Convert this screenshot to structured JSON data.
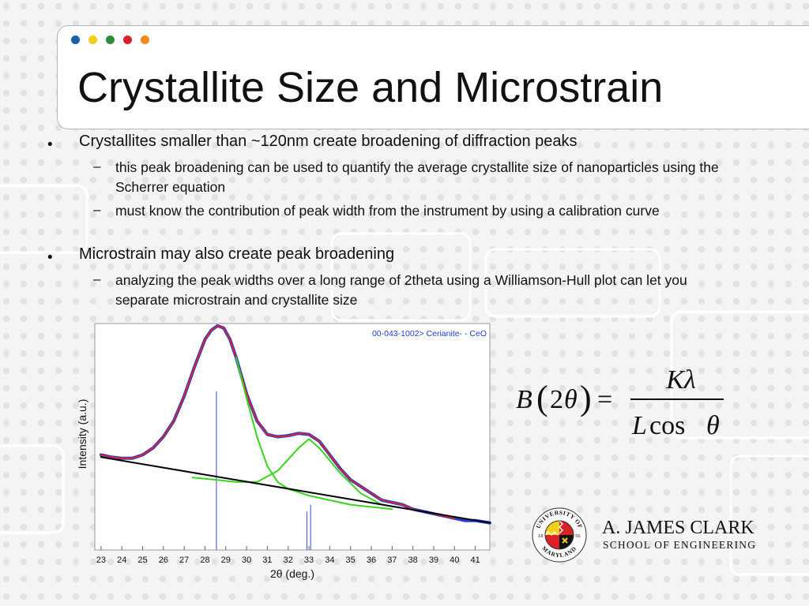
{
  "title": "Crystallite Size and Microstrain",
  "accent_dots": [
    "#1d5fa8",
    "#f3cf1a",
    "#2e8b3a",
    "#d92128",
    "#f28a1d"
  ],
  "bullets": [
    {
      "text": "Crystallites smaller than ~120nm create broadening of diffraction peaks",
      "sub": [
        "this peak broadening can be used to quantify the average crystallite size of nanoparticles using the Scherrer equation",
        "must know the contribution of peak width from the instrument by using a calibration curve"
      ]
    },
    {
      "text": "Microstrain may also create peak broadening",
      "sub": [
        "analyzing the peak widths over a long range of 2theta using a Williamson-Hull plot can let you separate microstrain and crystallite size"
      ]
    }
  ],
  "bullet_symbol": "•",
  "sub_bullet_symbol": "–",
  "chart_data": {
    "type": "line",
    "ylabel": "Intensity (a.u.)",
    "xlabel": "2θ (deg.)",
    "legend": "00-043-1002> Cerianite- - CeO",
    "legend_position": "top-right",
    "xlim": [
      22.7,
      41.7
    ],
    "ylim": [
      0,
      100
    ],
    "x_ticks": [
      23,
      24,
      25,
      26,
      27,
      28,
      29,
      30,
      31,
      32,
      33,
      34,
      35,
      36,
      37,
      38,
      39,
      40,
      41
    ],
    "grid": false,
    "reference_lines": [
      {
        "x": 28.55,
        "height": 70
      },
      {
        "x": 33.08,
        "height": 20
      },
      {
        "x": 32.9,
        "height": 17
      }
    ],
    "series": [
      {
        "role": "data",
        "color": "#1f3fd6",
        "x": [
          23.0,
          23.5,
          24.0,
          24.5,
          25.0,
          25.5,
          26.0,
          26.5,
          27.0,
          27.5,
          28.0,
          28.3,
          28.6,
          28.9,
          29.2,
          29.5,
          30.0,
          30.5,
          31.0,
          31.5,
          32.0,
          32.5,
          33.0,
          33.5,
          34.0,
          34.5,
          35.0,
          35.5,
          36.0,
          36.5,
          37.0,
          37.5,
          38.0,
          38.5,
          39.0,
          39.5,
          40.0,
          40.5,
          41.0,
          41.7
        ],
        "y": [
          42,
          41,
          40.5,
          40.5,
          42,
          45,
          50,
          57,
          68,
          81,
          93,
          97,
          99,
          98,
          93,
          85,
          69,
          57,
          51,
          50,
          50.5,
          51.5,
          51,
          48,
          42,
          36,
          31,
          28,
          25,
          22,
          21,
          20,
          18,
          17,
          16,
          15,
          14,
          13,
          13,
          12
        ]
      },
      {
        "role": "fit",
        "color": "#d8242c",
        "x": [
          23.0,
          23.5,
          24.0,
          24.5,
          25.0,
          25.5,
          26.0,
          26.5,
          27.0,
          27.5,
          28.0,
          28.3,
          28.6,
          28.9,
          29.2,
          29.5,
          30.0,
          30.5,
          31.0,
          31.5,
          32.0,
          32.5,
          33.0,
          33.5,
          34.0,
          34.5,
          35.0,
          35.5,
          36.0,
          36.5,
          37.0,
          37.5,
          38.0,
          38.5,
          39.0,
          39.5,
          40.0
        ],
        "y": [
          42,
          41,
          40.5,
          40.5,
          42,
          45,
          50,
          57,
          68,
          81,
          93,
          97,
          99,
          98,
          93,
          85,
          69,
          57,
          51,
          50,
          50.5,
          51.5,
          51,
          48,
          42,
          36,
          31,
          28,
          25,
          22,
          21,
          20,
          18,
          17,
          16,
          15,
          14
        ]
      },
      {
        "role": "component-peak-1",
        "color": "#39d61c",
        "x": [
          29.5,
          30.0,
          30.5,
          31.0,
          31.5,
          32.0,
          33.0,
          34.0,
          35.0,
          36.0,
          37.0
        ],
        "y": [
          85,
          67,
          50,
          37,
          30,
          27,
          24,
          22,
          20,
          19,
          18
        ]
      },
      {
        "role": "component-peak-2",
        "color": "#39d61c",
        "x": [
          27.4,
          28.5,
          29.5,
          30.5,
          31.5,
          32.5,
          33.0,
          33.5,
          34.5,
          35.5,
          36.5
        ],
        "y": [
          32,
          31,
          30,
          30,
          35,
          45,
          49,
          45,
          34,
          25,
          20
        ]
      },
      {
        "role": "baseline",
        "color": "#000000",
        "x": [
          23.0,
          41.7
        ],
        "y": [
          41,
          12
        ]
      }
    ]
  },
  "formula": {
    "lhs_symbol": "B",
    "arg_coefficient": "2",
    "arg_symbol": "θ",
    "equals": "=",
    "numerator": "Kλ",
    "denominator_symbol": "L",
    "denominator_function": "cos",
    "denominator_arg": "θ"
  },
  "logo": {
    "seal_text": "UNIVERSITY OF MARYLAND",
    "seal_years": [
      "18",
      "56"
    ],
    "name": "A. JAMES CLARK",
    "subtitle": "SCHOOL OF ENGINEERING"
  }
}
